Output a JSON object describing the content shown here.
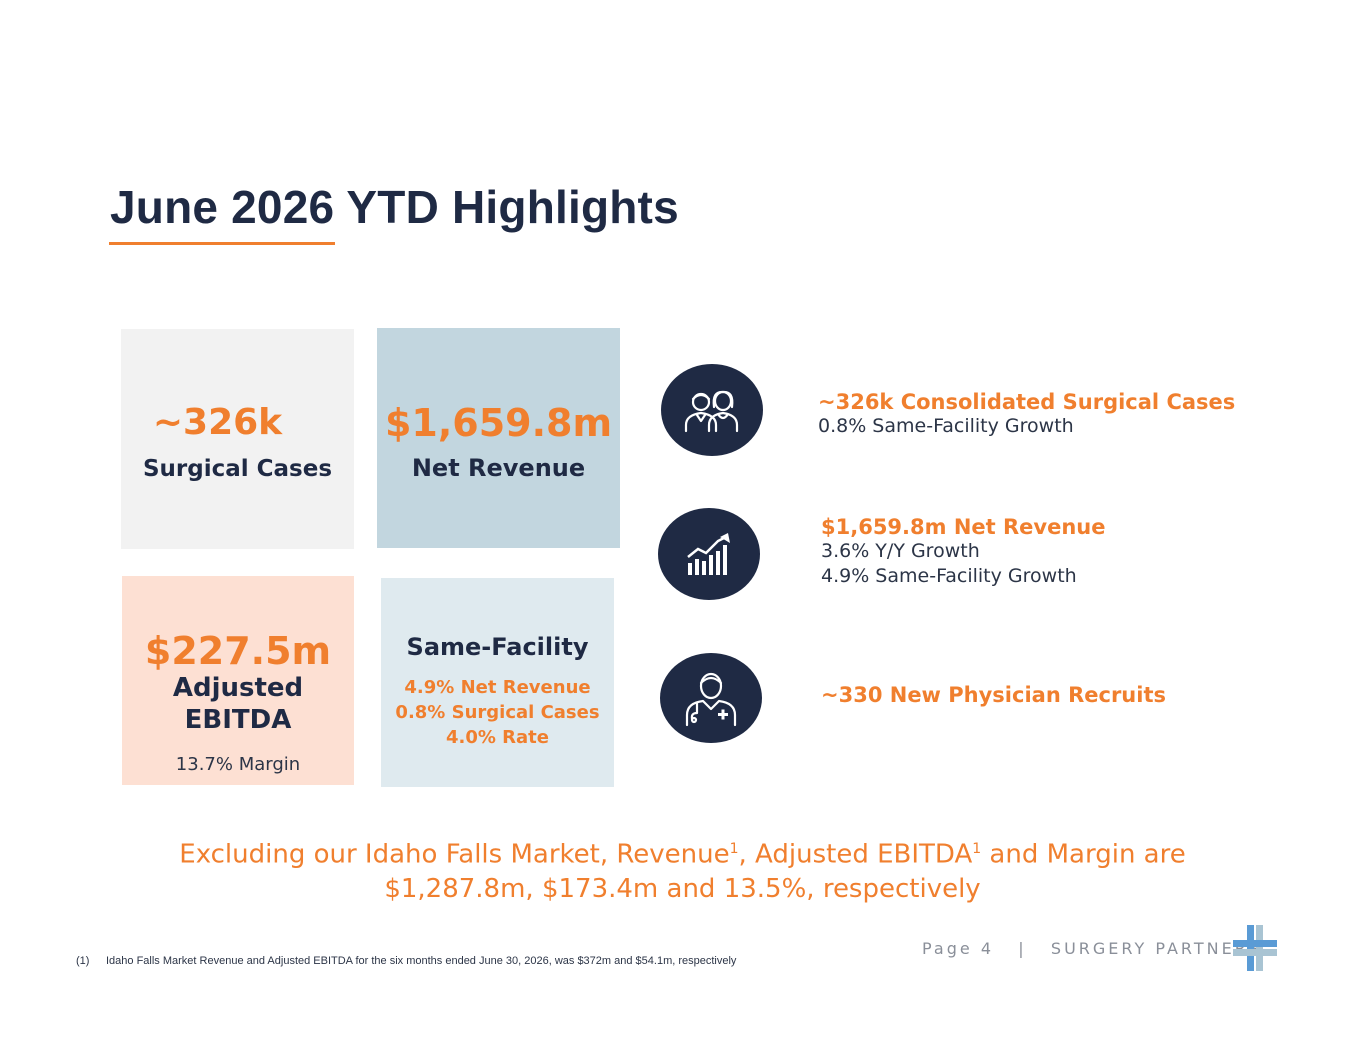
{
  "title": "June 2026 YTD Highlights",
  "tiles": {
    "cases": {
      "value": "~326k",
      "label": "Surgical Cases"
    },
    "revenue": {
      "value": "$1,659.8m",
      "label": "Net Revenue"
    },
    "ebitda": {
      "value": "$227.5m",
      "label_line1": "Adjusted",
      "label_line2": "EBITDA",
      "margin": "13.7% Margin"
    },
    "facility": {
      "heading": "Same-Facility",
      "lines": [
        "4.9% Net Revenue",
        "0.8% Surgical Cases",
        "4.0% Rate"
      ]
    }
  },
  "highlights": [
    {
      "icon": "patients-icon",
      "title": "~326k Consolidated Surgical Cases",
      "details": [
        "0.8% Same-Facility Growth"
      ]
    },
    {
      "icon": "growth-chart-icon",
      "title": "$1,659.8m Net Revenue",
      "details": [
        "3.6% Y/Y Growth",
        "4.9% Same-Facility Growth"
      ]
    },
    {
      "icon": "physician-icon",
      "title": "~330 New Physician Recruits",
      "details": []
    }
  ],
  "excluding": {
    "part1": "Excluding our Idaho Falls Market, Revenue",
    "sup1": "1",
    "part2": ", Adjusted EBITDA",
    "sup2": "1",
    "part3": " and Margin are",
    "line2": "$1,287.8m, $173.4m and 13.5%, respectively"
  },
  "footer": {
    "page": "Page 4   |   SURGERY PARTNERS",
    "footnote_num": "(1)",
    "footnote_text": "Idaho Falls Market Revenue and Adjusted EBITDA for the six months ended June 30, 2026, was $372m and $54.1m, respectively"
  },
  "colors": {
    "navy": "#1f2a44",
    "orange": "#f07f2e",
    "tile_gray": "#f2f2f2",
    "tile_blue": "#c2d6df",
    "tile_peach": "#fde0d3",
    "tile_lightblue": "#dfeaef"
  }
}
